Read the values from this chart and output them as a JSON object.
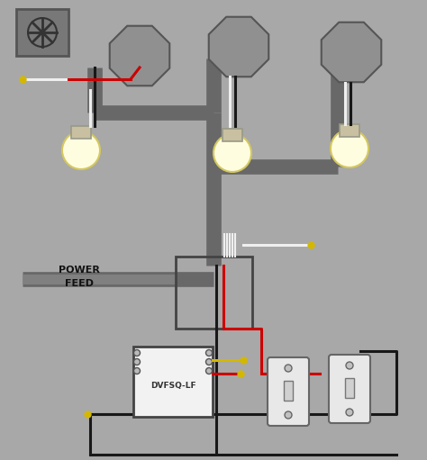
{
  "bg_color": "#a8a8a8",
  "fig_w": 4.74,
  "fig_h": 5.11,
  "dpi": 100,
  "switch_label": "DVFSQ-LF",
  "power_lines": [
    "POWER",
    "FEED"
  ],
  "wire_black": "#181818",
  "wire_white": "#efefef",
  "wire_red": "#cc0000",
  "wire_yellow": "#d4b800",
  "conduit_gray": "#686868",
  "conduit_lw": 12,
  "box_gray": "#909090",
  "box_edge": "#555555",
  "fan_face": "#787878",
  "oct_face": "#909090",
  "switch_face": "#e8e8e8",
  "dimmer_face": "#f2f2f2"
}
